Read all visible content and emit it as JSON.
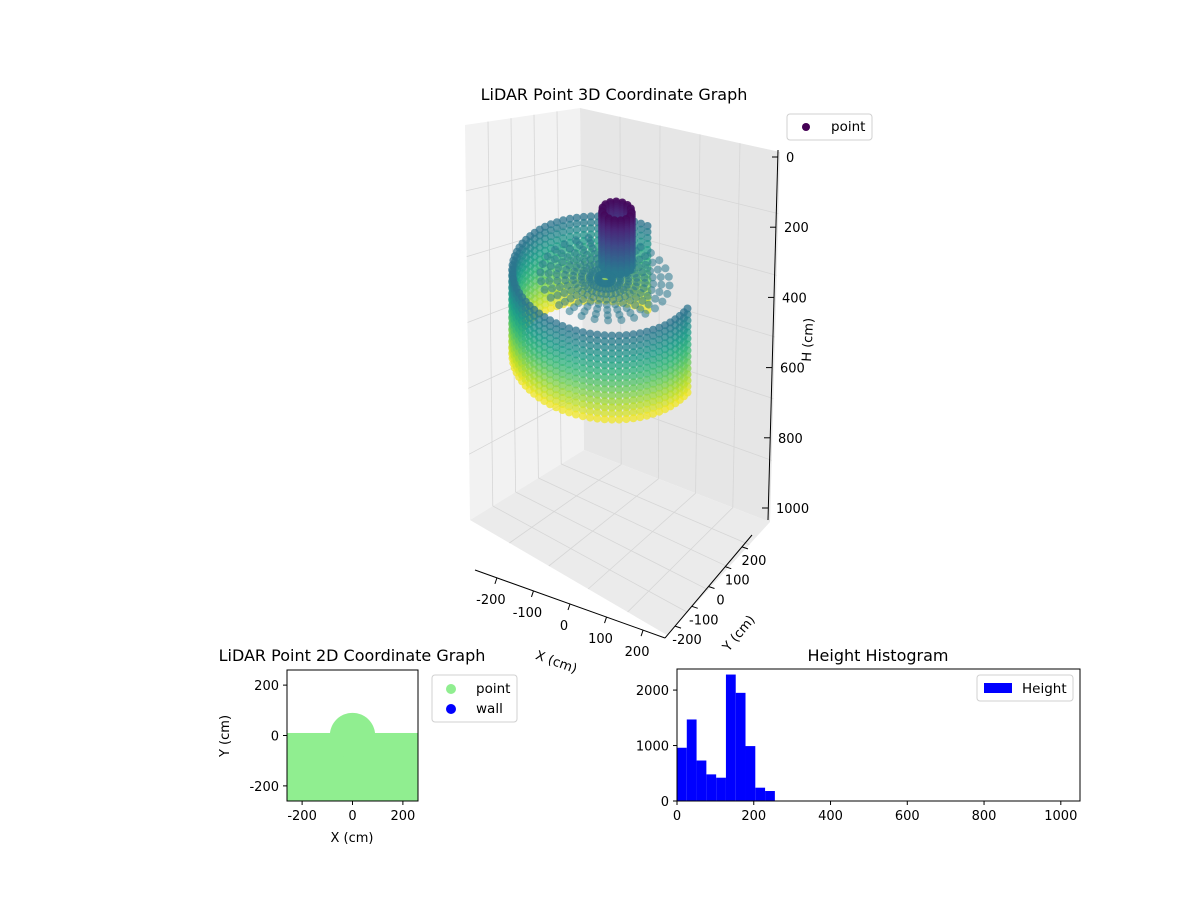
{
  "figure": {
    "panels": [
      "3d",
      "2d",
      "histogram"
    ]
  },
  "chart_data": [
    {
      "type": "scatter",
      "projection": "3d",
      "title": "LiDAR Point 3D Coordinate Graph",
      "xlabel": "X (cm)",
      "ylabel": "Y (cm)",
      "zlabel": "H (cm)",
      "x_ticks": [
        "-200",
        "-100",
        "0",
        "100",
        "200"
      ],
      "y_ticks": [
        "-200",
        "-100",
        "0",
        "100",
        "200"
      ],
      "z_ticks": [
        "0",
        "200",
        "400",
        "600",
        "800",
        "1000"
      ],
      "xlim": [
        -260,
        260
      ],
      "ylim": [
        -260,
        260
      ],
      "zlim": [
        0,
        1050
      ],
      "z_inverted": true,
      "colormap": "viridis",
      "legend": {
        "placement": "upper-right-outside",
        "entries": [
          {
            "label": "point",
            "color": "#440154"
          }
        ]
      },
      "description_of_data": {
        "wall_arc": {
          "radius": 250,
          "angle_start_deg": 90,
          "angle_end_deg": 360,
          "height_range": [
            180,
            470
          ]
        },
        "floor_disk": {
          "radius": 180,
          "height": 190
        },
        "pillar": {
          "center": [
            0,
            70
          ],
          "radius": 40,
          "height_range": [
            10,
            190
          ]
        }
      }
    },
    {
      "type": "scatter",
      "title": "LiDAR Point 2D Coordinate Graph",
      "xlabel": "X (cm)",
      "ylabel": "Y (cm)",
      "x_ticks": [
        "-200",
        "0",
        "200"
      ],
      "y_ticks": [
        "200",
        "0",
        "-200"
      ],
      "xlim": [
        -260,
        260
      ],
      "ylim": [
        -260,
        260
      ],
      "series": [
        {
          "name": "point",
          "color": "#90ee90",
          "region": {
            "y_top_flat": 10,
            "semicircle_center": [
              0,
              0
            ],
            "semicircle_radius": 90
          }
        },
        {
          "name": "wall",
          "color": "#0000ff",
          "points": []
        }
      ],
      "legend": {
        "placement": "upper-right-outside"
      }
    },
    {
      "type": "bar",
      "subtype": "histogram",
      "title": "Height Histogram",
      "x_ticks": [
        "0",
        "200",
        "400",
        "600",
        "800",
        "1000"
      ],
      "y_ticks": [
        "0",
        "1000",
        "2000"
      ],
      "xlim": [
        0,
        1050
      ],
      "ylim": [
        0,
        2380
      ],
      "bin_width": 25.5,
      "bin_start": 0,
      "values": [
        960,
        1470,
        730,
        480,
        420,
        2280,
        1950,
        990,
        240,
        180
      ],
      "series": [
        {
          "name": "Height",
          "color": "#0000ff"
        }
      ],
      "legend": {
        "placement": "upper-right"
      }
    }
  ]
}
